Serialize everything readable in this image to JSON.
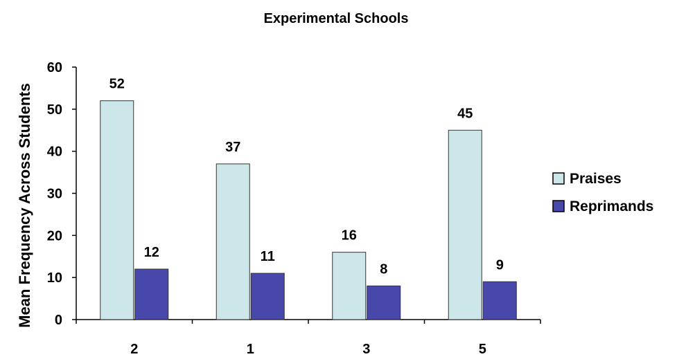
{
  "chart_data": {
    "type": "bar",
    "title": "Experimental Schools",
    "xlabel": "",
    "ylabel": "Mean Frequency Across Students",
    "categories": [
      "2",
      "1",
      "3",
      "5"
    ],
    "series": [
      {
        "name": "Praises",
        "values": [
          52,
          37,
          16,
          45
        ],
        "color": "#cce6ea"
      },
      {
        "name": "Reprimands",
        "values": [
          12,
          11,
          8,
          9
        ],
        "color": "#4848aa"
      }
    ],
    "ylim": [
      0,
      60
    ],
    "yticks": [
      0,
      10,
      20,
      30,
      40,
      50,
      60
    ],
    "data_labels": true,
    "grid": false,
    "legend_position": "right"
  }
}
